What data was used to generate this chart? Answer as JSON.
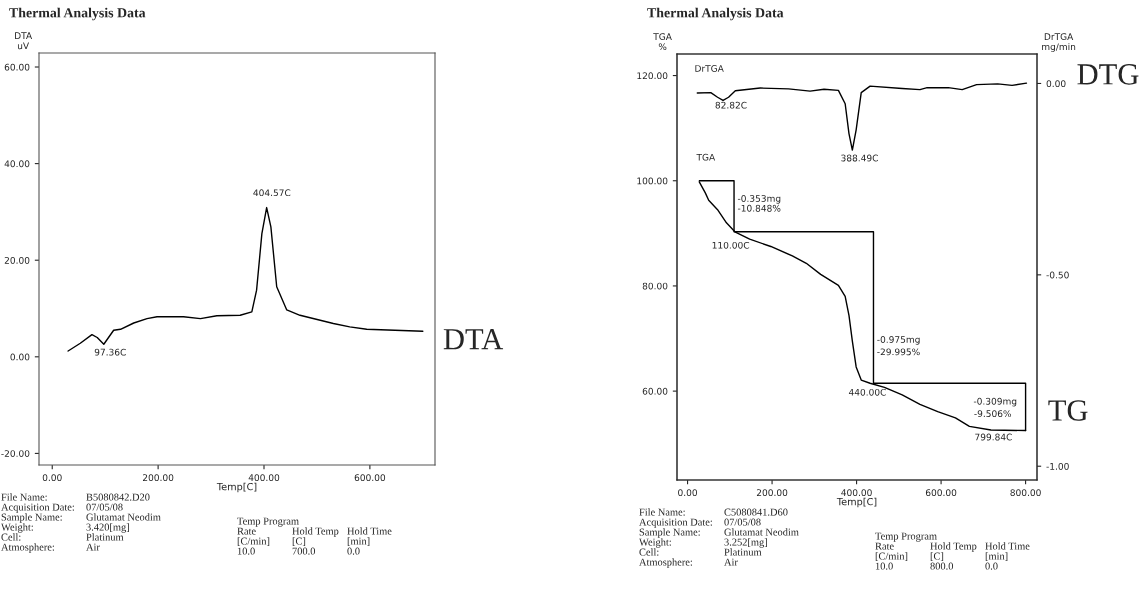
{
  "chart_data": [
    {
      "type": "line",
      "title": "Thermal Analysis Data",
      "xlabel": "Temp[C]",
      "ylabel": "DTA\nuV",
      "xlim": [
        -25,
        723
      ],
      "xticks": [
        {
          "value": 0,
          "label": "0.00"
        },
        {
          "value": 200,
          "label": "200.00"
        },
        {
          "value": 400,
          "label": "400.00"
        },
        {
          "value": 600,
          "label": "600.00"
        }
      ],
      "ylim": [
        -22.4,
        62.9
      ],
      "yticks": [
        {
          "value": -20,
          "label": "-20.00"
        },
        {
          "value": 0,
          "label": "0.00"
        },
        {
          "value": 20,
          "label": "20.00"
        },
        {
          "value": 40,
          "label": "40.00"
        },
        {
          "value": 60,
          "label": "60.00"
        }
      ],
      "grid": false,
      "legend": false,
      "line_style": "solid",
      "series": [
        {
          "color": "#000000",
          "x": [
            30,
            53,
            75,
            85,
            97.4,
            116,
            129,
            154,
            179,
            198,
            248,
            280,
            311,
            355,
            377,
            386,
            396,
            405,
            413,
            424,
            443,
            468,
            531,
            562,
            594,
            700
          ],
          "values": [
            1.2,
            2.8,
            4.6,
            4.0,
            2.6,
            5.5,
            5.7,
            7.0,
            7.9,
            8.3,
            8.3,
            7.9,
            8.5,
            8.6,
            9.3,
            13.8,
            25.5,
            30.9,
            26.9,
            14.5,
            9.7,
            8.6,
            6.9,
            6.2,
            5.7,
            5.3
          ]
        }
      ],
      "annotations": [
        "404.57C",
        "97.36C",
        "DTA",
        "File Name:",
        "B5080842.D20",
        "Acquisition Date:",
        "07/05/08",
        "Sample Name:",
        "Glutamat Neodim",
        "Weight:",
        "3.420[mg]",
        "Cell:",
        "Platinum",
        "Atmosphere:",
        "Air",
        "Temp Program",
        "Rate",
        "Hold Temp",
        "Hold Time",
        "[C/min]",
        "[C]",
        "[min]",
        "10.0",
        "700.0",
        "0.0"
      ]
    },
    {
      "type": "line",
      "title": "Thermal Analysis Data",
      "xlabel": "Temp[C]",
      "ylabel": "TGA\n%",
      "y2label": "DrTGA\nmg/min",
      "xlim": [
        -25,
        827
      ],
      "xticks": [
        {
          "value": 0,
          "label": "0.00"
        },
        {
          "value": 200,
          "label": "200.00"
        },
        {
          "value": 400,
          "label": "400.00"
        },
        {
          "value": 600,
          "label": "600.00"
        },
        {
          "value": 800,
          "label": "800.00"
        }
      ],
      "ylim": [
        43.1,
        124.1
      ],
      "yticks": [
        {
          "value": 60,
          "label": "60.00"
        },
        {
          "value": 80,
          "label": "80.00"
        },
        {
          "value": 100,
          "label": "100.00"
        },
        {
          "value": 120,
          "label": "120.00"
        }
      ],
      "y2lim": [
        -1.036,
        0.077
      ],
      "y2ticks": [
        {
          "value": -1,
          "label": "-1.00"
        },
        {
          "value": -0.5,
          "label": "-0.50"
        },
        {
          "value": 0,
          "label": "0.00"
        }
      ],
      "grid": false,
      "legend": false,
      "line_style": "solid",
      "series": [
        {
          "name": "DrTGA",
          "axis": "y2",
          "color": "#000000",
          "x": [
            23,
            55,
            71,
            84,
            97,
            113,
            172,
            239,
            290,
            323,
            357,
            373,
            382,
            390,
            399,
            411,
            432,
            508,
            550,
            567,
            617,
            650,
            684,
            734,
            768,
            802
          ],
          "values": [
            -0.025,
            -0.024,
            -0.036,
            -0.044,
            -0.036,
            -0.019,
            -0.012,
            -0.014,
            -0.02,
            -0.015,
            -0.018,
            -0.053,
            -0.131,
            -0.174,
            -0.121,
            -0.024,
            -0.007,
            -0.013,
            -0.016,
            -0.011,
            -0.011,
            -0.016,
            -0.003,
            -0.001,
            -0.005,
            0.001
          ]
        },
        {
          "name": "TGA",
          "color": "#000000",
          "x": [
            27.7,
            42,
            50,
            71,
            92,
            112,
            147,
            197,
            248,
            281,
            315,
            357,
            373,
            382,
            390,
            399,
            411,
            432,
            466,
            508,
            550,
            592,
            634,
            667,
            718,
            800
          ],
          "values": [
            99.8,
            97.7,
            96.3,
            94.5,
            92.0,
            90.3,
            88.9,
            87.5,
            85.7,
            84.3,
            82.2,
            80.1,
            78.0,
            74.4,
            69.5,
            64.6,
            62.1,
            61.5,
            60.7,
            59.3,
            57.5,
            56.1,
            54.9,
            53.3,
            52.6,
            52.5
          ]
        },
        {
          "color": "#000000",
          "x": [
            28,
            110,
            110,
            440,
            440,
            800,
            800
          ],
          "values": [
            100,
            100,
            90.3,
            90.3,
            61.5,
            61.5,
            52.5
          ]
        }
      ],
      "annotations": [
        "82.82C",
        "388.49C",
        "-0.353mg",
        "-10.848%",
        "110.00C",
        "-0.975mg",
        "-29.995%",
        "440.00C",
        "-0.309mg",
        "-9.506%",
        "799.84C",
        "DTG",
        "TG",
        "File Name:",
        "C5080841.D60",
        "Acquisition Date:",
        "07/05/08",
        "Sample Name:",
        "Glutamat Neodim",
        "Weight:",
        "3.252[mg]",
        "Cell:",
        "Platinum",
        "Atmosphere:",
        "Air",
        "Temp Program",
        "Rate",
        "Hold Temp",
        "Hold Time",
        "[C/min]",
        "[C]",
        "[min]",
        "10.0",
        "800.0",
        "0.0"
      ]
    }
  ]
}
